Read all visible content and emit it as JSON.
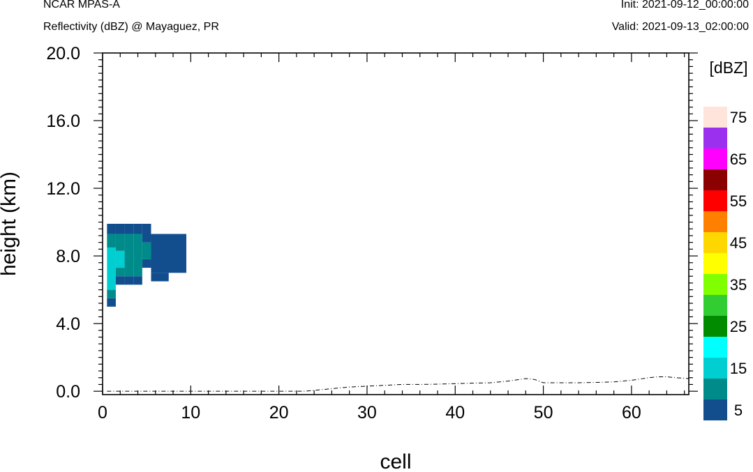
{
  "header": {
    "model": "NCAR MPAS-A",
    "field": "Reflectivity (dBZ) @ Mayaguez, PR",
    "init": "Init: 2021-09-12_00:00:00",
    "valid": "Valid: 2021-09-13_02:00:00"
  },
  "chart_data": {
    "type": "heatmap",
    "xlabel": "cell",
    "ylabel": "height (km)",
    "xlim": [
      0,
      66.5
    ],
    "ylim": [
      -0.2,
      20.0
    ],
    "x_ticks": [
      0,
      10,
      20,
      30,
      40,
      50,
      60
    ],
    "y_ticks": [
      0.0,
      4.0,
      8.0,
      12.0,
      16.0,
      20.0
    ],
    "y_tick_labels": [
      "0.0",
      "4.0",
      "8.0",
      "12.0",
      "16.0",
      "20.0"
    ],
    "grid": false,
    "colorbar": {
      "label": "[dBZ]",
      "levels": [
        5,
        10,
        15,
        20,
        25,
        30,
        35,
        40,
        45,
        50,
        55,
        60,
        65,
        70,
        75
      ],
      "tick_labels": [
        "5",
        "15",
        "25",
        "35",
        "45",
        "55",
        "65",
        "75"
      ],
      "colors": [
        "#124e8e",
        "#008b8b",
        "#00ced1",
        "#00ffff",
        "#008b00",
        "#32cd32",
        "#7fff00",
        "#ffff00",
        "#ffd700",
        "#ff7f00",
        "#ff0000",
        "#8b0000",
        "#ff00ff",
        "#9b30ef",
        "#ffe4dc"
      ]
    },
    "cells": [
      {
        "x0": 0.5,
        "x1": 1.5,
        "y0": 5.0,
        "y1": 5.5,
        "value": 5
      },
      {
        "x0": 0.5,
        "x1": 1.5,
        "y0": 5.5,
        "y1": 6.0,
        "value": 10
      },
      {
        "x0": 0.5,
        "x1": 1.5,
        "y0": 6.0,
        "y1": 8.5,
        "value": 15
      },
      {
        "x0": 0.5,
        "x1": 1.5,
        "y0": 8.5,
        "y1": 9.3,
        "value": 10
      },
      {
        "x0": 0.5,
        "x1": 1.5,
        "y0": 9.3,
        "y1": 9.9,
        "value": 5
      },
      {
        "x0": 1.5,
        "x1": 2.5,
        "y0": 6.3,
        "y1": 6.8,
        "value": 5
      },
      {
        "x0": 1.5,
        "x1": 2.5,
        "y0": 6.8,
        "y1": 7.3,
        "value": 10
      },
      {
        "x0": 1.5,
        "x1": 2.5,
        "y0": 7.3,
        "y1": 8.3,
        "value": 15
      },
      {
        "x0": 1.5,
        "x1": 2.5,
        "y0": 8.3,
        "y1": 9.3,
        "value": 10
      },
      {
        "x0": 1.5,
        "x1": 2.5,
        "y0": 9.3,
        "y1": 9.9,
        "value": 5
      },
      {
        "x0": 2.5,
        "x1": 3.5,
        "y0": 6.3,
        "y1": 6.8,
        "value": 5
      },
      {
        "x0": 2.5,
        "x1": 3.5,
        "y0": 6.8,
        "y1": 9.3,
        "value": 10
      },
      {
        "x0": 2.5,
        "x1": 3.5,
        "y0": 9.3,
        "y1": 9.9,
        "value": 5
      },
      {
        "x0": 3.5,
        "x1": 4.5,
        "y0": 6.3,
        "y1": 6.8,
        "value": 5
      },
      {
        "x0": 3.5,
        "x1": 4.5,
        "y0": 6.8,
        "y1": 9.3,
        "value": 10
      },
      {
        "x0": 3.5,
        "x1": 4.5,
        "y0": 9.3,
        "y1": 9.9,
        "value": 5
      },
      {
        "x0": 4.5,
        "x1": 5.5,
        "y0": 7.3,
        "y1": 7.8,
        "value": 5
      },
      {
        "x0": 4.5,
        "x1": 5.5,
        "y0": 7.8,
        "y1": 8.8,
        "value": 10
      },
      {
        "x0": 4.5,
        "x1": 5.5,
        "y0": 8.8,
        "y1": 9.9,
        "value": 5
      },
      {
        "x0": 5.5,
        "x1": 7.5,
        "y0": 6.5,
        "y1": 7.0,
        "value": 5
      },
      {
        "x0": 5.5,
        "x1": 9.5,
        "y0": 7.0,
        "y1": 9.3,
        "value": 5
      }
    ],
    "terrain": {
      "x": [
        0.5,
        23,
        24,
        26,
        28,
        30,
        32,
        34,
        36,
        38,
        40,
        42,
        44,
        46,
        48,
        49,
        50,
        52,
        54,
        56,
        58,
        60,
        62,
        63,
        64,
        65,
        66.5
      ],
      "y": [
        0.0,
        0.0,
        0.05,
        0.15,
        0.25,
        0.3,
        0.35,
        0.4,
        0.4,
        0.42,
        0.45,
        0.48,
        0.5,
        0.6,
        0.75,
        0.7,
        0.5,
        0.5,
        0.5,
        0.52,
        0.55,
        0.65,
        0.8,
        0.85,
        0.85,
        0.8,
        0.75
      ]
    }
  }
}
